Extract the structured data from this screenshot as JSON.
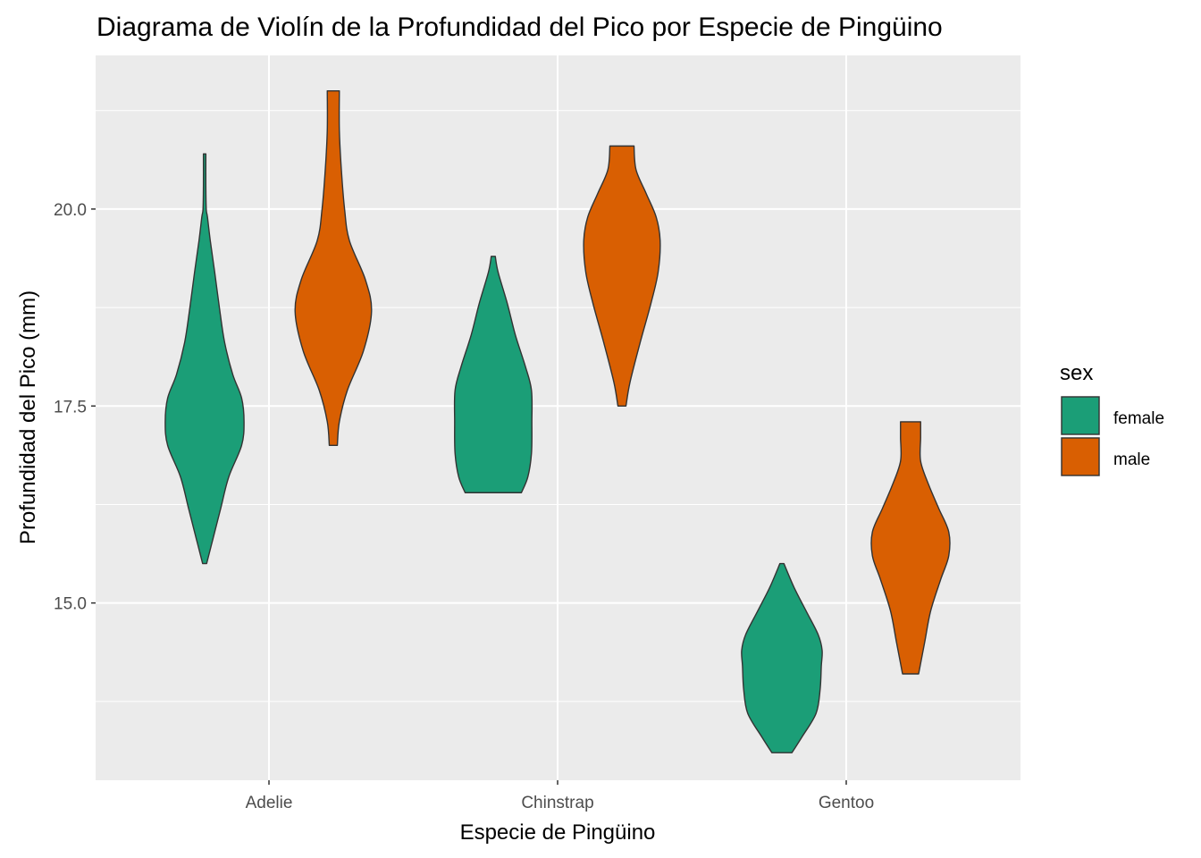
{
  "chart_data": {
    "type": "violin",
    "title": "Diagrama de Violín de la Profundidad del Pico por Especie de Pingüino",
    "xlabel": "Especie de Pingüino",
    "ylabel": "Profundidad del Pico (mm)",
    "categories": [
      "Adelie",
      "Chinstrap",
      "Gentoo"
    ],
    "ylim": [
      12.75,
      21.95
    ],
    "y_ticks": [
      {
        "value": 15.0,
        "label": "15.0"
      },
      {
        "value": 17.5,
        "label": "17.5"
      },
      {
        "value": 20.0,
        "label": "20.0"
      }
    ],
    "grid": true,
    "legend": {
      "title": "sex",
      "position": "right",
      "entries": [
        {
          "label": "female",
          "color": "#1B9E77"
        },
        {
          "label": "male",
          "color": "#D95F02"
        }
      ]
    },
    "series": [
      {
        "name": "female",
        "color": "#1B9E77",
        "violins": [
          {
            "category": "Adelie",
            "min": 15.5,
            "max": 20.7,
            "density": [
              [
                15.5,
                0.05
              ],
              [
                15.8,
                0.2
              ],
              [
                16.2,
                0.4
              ],
              [
                16.6,
                0.6
              ],
              [
                17.0,
                0.92
              ],
              [
                17.3,
                0.98
              ],
              [
                17.6,
                0.92
              ],
              [
                17.9,
                0.7
              ],
              [
                18.3,
                0.5
              ],
              [
                18.7,
                0.38
              ],
              [
                19.2,
                0.25
              ],
              [
                19.6,
                0.14
              ],
              [
                19.9,
                0.07
              ],
              [
                20.0,
                0.04
              ],
              [
                20.3,
                0.03
              ],
              [
                20.7,
                0.03
              ]
            ]
          },
          {
            "category": "Chinstrap",
            "min": 16.4,
            "max": 19.4,
            "density": [
              [
                16.4,
                0.7
              ],
              [
                16.6,
                0.86
              ],
              [
                16.9,
                0.95
              ],
              [
                17.3,
                0.96
              ],
              [
                17.7,
                0.95
              ],
              [
                18.0,
                0.8
              ],
              [
                18.4,
                0.55
              ],
              [
                18.8,
                0.35
              ],
              [
                19.2,
                0.12
              ],
              [
                19.4,
                0.05
              ]
            ]
          },
          {
            "category": "Gentoo",
            "min": 13.1,
            "max": 15.5,
            "density": [
              [
                13.1,
                0.25
              ],
              [
                13.3,
                0.5
              ],
              [
                13.6,
                0.85
              ],
              [
                13.9,
                0.95
              ],
              [
                14.2,
                0.98
              ],
              [
                14.4,
                1.0
              ],
              [
                14.6,
                0.9
              ],
              [
                14.9,
                0.6
              ],
              [
                15.2,
                0.3
              ],
              [
                15.5,
                0.05
              ]
            ]
          }
        ]
      },
      {
        "name": "male",
        "color": "#D95F02",
        "violins": [
          {
            "category": "Adelie",
            "min": 17.0,
            "max": 21.5,
            "density": [
              [
                17.0,
                0.1
              ],
              [
                17.3,
                0.15
              ],
              [
                17.7,
                0.35
              ],
              [
                18.2,
                0.75
              ],
              [
                18.7,
                0.95
              ],
              [
                19.1,
                0.8
              ],
              [
                19.6,
                0.4
              ],
              [
                20.0,
                0.28
              ],
              [
                20.5,
                0.2
              ],
              [
                21.0,
                0.15
              ],
              [
                21.5,
                0.15
              ]
            ]
          },
          {
            "category": "Chinstrap",
            "min": 17.5,
            "max": 20.8,
            "density": [
              [
                17.5,
                0.1
              ],
              [
                17.8,
                0.2
              ],
              [
                18.3,
                0.45
              ],
              [
                18.8,
                0.72
              ],
              [
                19.2,
                0.9
              ],
              [
                19.6,
                0.95
              ],
              [
                19.9,
                0.85
              ],
              [
                20.2,
                0.6
              ],
              [
                20.5,
                0.35
              ],
              [
                20.8,
                0.3
              ]
            ]
          },
          {
            "category": "Gentoo",
            "min": 14.1,
            "max": 17.3,
            "density": [
              [
                14.1,
                0.2
              ],
              [
                14.5,
                0.35
              ],
              [
                14.9,
                0.5
              ],
              [
                15.3,
                0.75
              ],
              [
                15.6,
                0.95
              ],
              [
                15.9,
                0.95
              ],
              [
                16.2,
                0.7
              ],
              [
                16.5,
                0.45
              ],
              [
                16.8,
                0.25
              ],
              [
                17.1,
                0.25
              ],
              [
                17.3,
                0.25
              ]
            ]
          }
        ]
      }
    ]
  }
}
